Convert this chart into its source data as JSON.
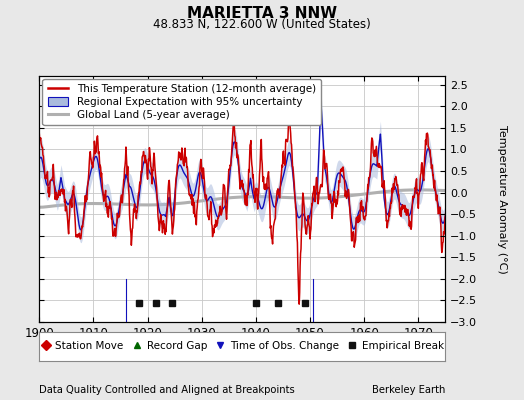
{
  "title": "MARIETTA 3 NNW",
  "subtitle": "48.833 N, 122.600 W (United States)",
  "ylabel": "Temperature Anomaly (°C)",
  "xlabel_bottom": "Data Quality Controlled and Aligned at Breakpoints",
  "xlabel_bottom_right": "Berkeley Earth",
  "xlim": [
    1900,
    1975
  ],
  "ylim": [
    -3.0,
    2.7
  ],
  "yticks": [
    -3,
    -2.5,
    -2,
    -1.5,
    -1,
    -0.5,
    0,
    0.5,
    1,
    1.5,
    2,
    2.5
  ],
  "xticks": [
    1900,
    1910,
    1920,
    1930,
    1940,
    1950,
    1960,
    1970
  ],
  "background_color": "#e8e8e8",
  "plot_bg_color": "#ffffff",
  "grid_color": "#c8c8c8",
  "red_line_color": "#cc0000",
  "blue_line_color": "#1111bb",
  "blue_fill_color": "#aabbdd",
  "gray_line_color": "#b0b0b0",
  "marker_items": [
    {
      "label": "Station Move",
      "color": "#cc0000",
      "marker": "D"
    },
    {
      "label": "Record Gap",
      "color": "#006600",
      "marker": "^"
    },
    {
      "label": "Time of Obs. Change",
      "color": "#1111bb",
      "marker": "v"
    },
    {
      "label": "Empirical Break",
      "color": "#111111",
      "marker": "s"
    }
  ],
  "empirical_breaks": [
    1918.5,
    1921.5,
    1924.5,
    1940.0,
    1944.0,
    1949.0
  ],
  "obs_changes": [
    1916.0,
    1950.5
  ],
  "station_moves": [],
  "record_gaps": [],
  "seed": 42,
  "n_years": 76,
  "start_year": 1900
}
